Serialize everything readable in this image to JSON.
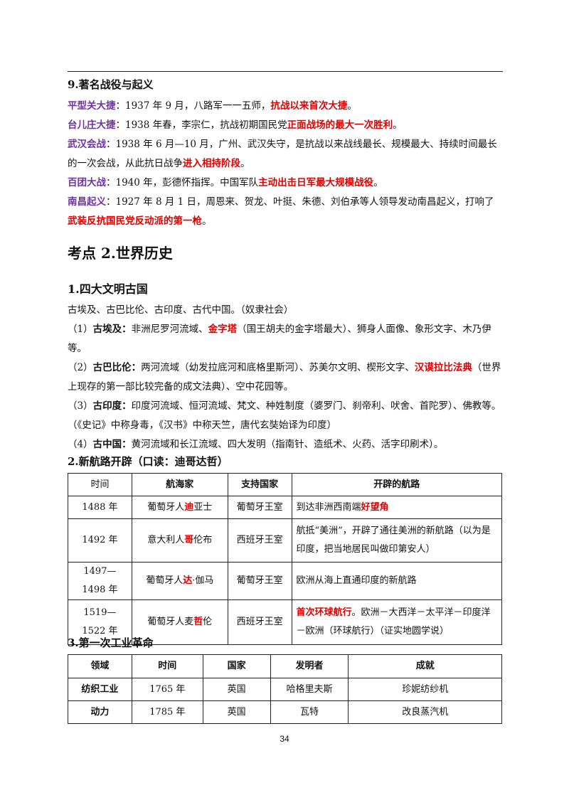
{
  "section9": {
    "heading": "9.著名战役与起义",
    "items": [
      [
        "平型关大捷",
        "：1937 年 9 月，八路军一一五师，",
        "抗战以来首次大捷",
        "。"
      ],
      [
        "台儿庄大捷",
        "：1938 年春，李宗仁，抗战初期国民党",
        "正面战场的最大一次胜利",
        "。"
      ],
      [
        "武汉会战",
        "：1938 年 6 月—10 月，广州、武汉失守，是抗战以来战线最长、规模最大、持续时间最长的一次会战，从此抗日战争",
        "进入相持阶段",
        "。"
      ],
      [
        "百团大战",
        "：1940 年，彭德怀指挥。中国军队",
        "主动出击日军最大规模战役",
        "。"
      ],
      [
        "南昌起义",
        "：1927 年 8 月 1 日，周恩来、贺龙、叶挺、朱德、刘伯承等人领导发动南昌起义，打响了",
        "武装反抗国民党反动派的第一枪",
        "。"
      ]
    ]
  },
  "topic2": {
    "title": "考点 2.世界历史"
  },
  "civilizations": {
    "heading": "1.四大文明古国",
    "intro": "古埃及、古巴比伦、古印度、古代中国。（奴隶社会）",
    "items": [
      [
        "（1）",
        "古埃及：",
        "非洲尼罗河流域、",
        "金字塔",
        "（国王胡夫的金字塔最大）、狮身人面像、象形文字、木乃伊等。"
      ],
      [
        "（2）",
        "古巴比伦：",
        "两河流域（幼发拉底河和底格里斯河）、苏美尔文明、楔形文字、",
        "汉谟拉比法典",
        "（世界上现存的第一部比较完备的成文法典）、空中花园等。"
      ],
      [
        "（3）",
        "古印度：",
        "印度河流域、恒河流域、梵文、种姓制度（婆罗门、刹帝利、吠舍、首陀罗）、佛教等。（《史记》中称身毒，《汉书》中称天竺，唐代玄奘始译为印度）"
      ],
      [
        "（4）",
        "古中国：",
        "黄河流域和长江流域、四大发明（指南针、造纸术、火药、活字印刷术）。"
      ]
    ]
  },
  "routes": {
    "heading": "2.新航路开辟（口读：迪哥达哲）",
    "header": [
      "时间",
      "航海家",
      "支持国家",
      "开辟的航路"
    ],
    "rows": [
      {
        "time": "1488 年",
        "navigator": [
          "葡萄牙人",
          "迪",
          "亚士"
        ],
        "country": "葡萄牙王室",
        "route": [
          "到达非洲西南端",
          "好望角"
        ]
      },
      {
        "time": "1492 年",
        "navigator": [
          "意大利人",
          "哥",
          "伦布"
        ],
        "country": "西班牙王室",
        "route": [
          "航抵“美洲”，开辟了通往美洲的新航路（以为是印度，把当地居民叫做印第安人）"
        ]
      },
      {
        "time": "1497—1498 年",
        "navigator": [
          "葡萄牙人",
          "达",
          "·伽马"
        ],
        "country": "葡萄牙王室",
        "route": [
          "欧洲从海上直通印度的新航路"
        ]
      },
      {
        "time": "1519—1522 年",
        "navigator": [
          "葡萄牙人麦",
          "哲",
          "伦"
        ],
        "country": "西班牙王室",
        "route": [
          "首次环球航行",
          "。欧洲－大西洋－太平洋－印度洋－欧洲（环球航行）（证实地圆学说）"
        ]
      }
    ]
  },
  "industrial": {
    "heading": "3.第一次工业革命",
    "header": [
      "领域",
      "时间",
      "国家",
      "发明者",
      "成就"
    ],
    "rows": [
      [
        "纺织工业",
        "1765 年",
        "英国",
        "哈格里夫斯",
        "珍妮纺纱机"
      ],
      [
        "动力",
        "1785 年",
        "英国",
        "瓦特",
        "改良蒸汽机"
      ]
    ]
  },
  "page_number": "34"
}
